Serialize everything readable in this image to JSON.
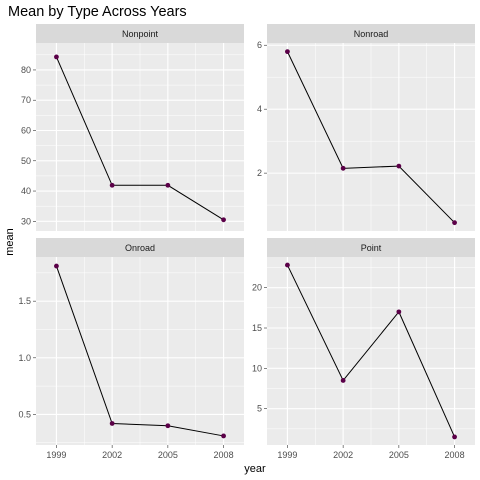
{
  "chart_data": {
    "type": "line",
    "title": "Mean by Type Across Years",
    "xlabel": "year",
    "ylabel": "mean",
    "x": [
      1999,
      2002,
      2005,
      2008
    ],
    "x_ticks": [
      "1999",
      "2002",
      "2005",
      "2008"
    ],
    "grid": true,
    "colors": {
      "point": "#5b0048",
      "line": "#000000",
      "panel_bg": "#ebebeb",
      "strip_bg": "#d9d9d9",
      "grid": "#ffffff"
    },
    "facets": [
      {
        "name": "Nonpoint",
        "values": [
          84.3,
          41.9,
          41.9,
          30.5
        ],
        "ylim": [
          26.8,
          88.9
        ],
        "y_ticks": [
          30,
          40,
          50,
          60,
          70,
          80
        ],
        "y_tick_labels": [
          "30",
          "40",
          "50",
          "60",
          "70",
          "80"
        ]
      },
      {
        "name": "Nonroad",
        "values": [
          5.8,
          2.15,
          2.22,
          0.45
        ],
        "ylim": [
          0.19,
          6.07
        ],
        "y_ticks": [
          2,
          4,
          6
        ],
        "y_tick_labels": [
          "2",
          "4",
          "6"
        ]
      },
      {
        "name": "Onroad",
        "values": [
          1.81,
          0.42,
          0.4,
          0.31
        ],
        "ylim": [
          0.23,
          1.89
        ],
        "y_ticks": [
          0.5,
          1.0,
          1.5
        ],
        "y_tick_labels": [
          "0.5",
          "1.0",
          "1.5"
        ]
      },
      {
        "name": "Point",
        "values": [
          22.8,
          8.5,
          17.0,
          1.5
        ],
        "ylim": [
          0.5,
          23.8
        ],
        "y_ticks": [
          5,
          10,
          15,
          20
        ],
        "y_tick_labels": [
          "5",
          "10",
          "15",
          "20"
        ]
      }
    ]
  }
}
